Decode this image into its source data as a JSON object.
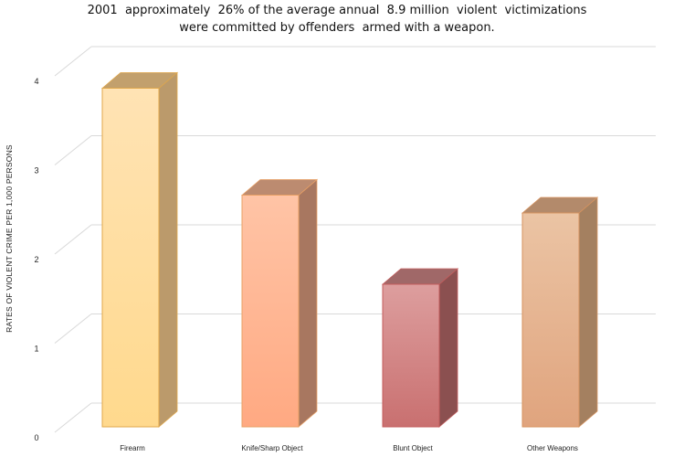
{
  "chart_data": {
    "type": "bar",
    "style": "3d-column",
    "title_lines": [
      "2001  approximately  26% of the average annual  8.9 million  violent  victimizations",
      "were committed by offenders  armed with a weapon."
    ],
    "ylabel": "RATES OF VIOLENT CRIME PER 1,000 PERSONS",
    "xlabel": "",
    "categories": [
      "Firearm",
      "Knife/Sharp Object",
      "Blunt Object",
      "Other Weapons"
    ],
    "values": [
      3.8,
      2.6,
      1.6,
      2.4
    ],
    "ylim": [
      0,
      4
    ],
    "yticks": [
      "0",
      "1",
      "2",
      "3",
      "4"
    ],
    "grid": true,
    "legend": "none",
    "colors": {
      "fronts_top": [
        "#ffe3b4",
        "#ffc4a6",
        "#dd9e9e",
        "#ebc4a4"
      ],
      "fronts_bottom": [
        "#ffd98d",
        "#ffa982",
        "#c97070",
        "#e0a47e"
      ],
      "sides": [
        "#bb9a6b",
        "#a87760",
        "#8b5050",
        "#a48060"
      ],
      "tops": [
        "#c2a06d",
        "#bc8b70",
        "#a06868",
        "#b38a6b"
      ],
      "outlines": [
        "#e0a74a",
        "#e9a064",
        "#c45c5c",
        "#d7935f"
      ],
      "grid": "#d9d9d9",
      "axis_text": "#222222"
    }
  }
}
